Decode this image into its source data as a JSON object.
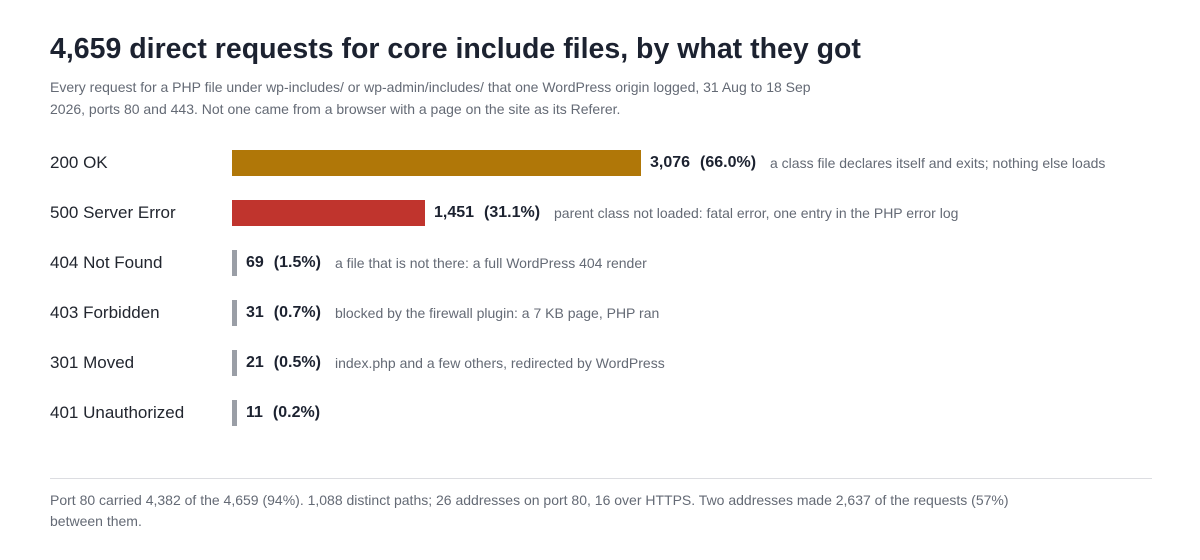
{
  "title": "4,659 direct requests for core include files, by what they got",
  "subtitle": "Every request for a PHP file under wp-includes/ or wp-admin/includes/ that one WordPress origin logged, 31 Aug to 18 Sep 2026, ports 80 and 443. Not one came from a browser with a page on the site as its Referer.",
  "footer": "Port 80 carried 4,382 of the 4,659 (94%). 1,088 distinct paths; 26 addresses on port 80, 16 over HTTPS. Two addresses made 2,637 of the requests (57%) between them.",
  "chart_data": {
    "type": "bar",
    "orientation": "horizontal",
    "categories": [
      "200 OK",
      "500 Server Error",
      "404 Not Found",
      "403 Forbidden",
      "301 Moved",
      "401 Unauthorized"
    ],
    "values": [
      3076,
      1451,
      69,
      31,
      21,
      11
    ],
    "value_labels": [
      "3,076",
      "1,451",
      "69",
      "31",
      "21",
      "11"
    ],
    "percent_labels": [
      "(66.0%)",
      "(31.1%)",
      "(1.5%)",
      "(0.7%)",
      "(0.5%)",
      "(0.2%)"
    ],
    "annotations": [
      "a class file declares itself and exits; nothing else loads",
      "parent class not loaded: fatal error, one entry in the PHP error log",
      "a file that is not there: a full WordPress 404 render",
      "blocked by the firewall plugin: a 7 KB page, PHP ran",
      "index.php and a few others, redirected by WordPress",
      ""
    ],
    "colors": [
      "#b07708",
      "#c0342d",
      "#9a9ea6",
      "#9a9ea6",
      "#9a9ea6",
      "#9a9ea6"
    ],
    "xlim": [
      0,
      3076
    ],
    "grid": false,
    "legend": "none"
  }
}
